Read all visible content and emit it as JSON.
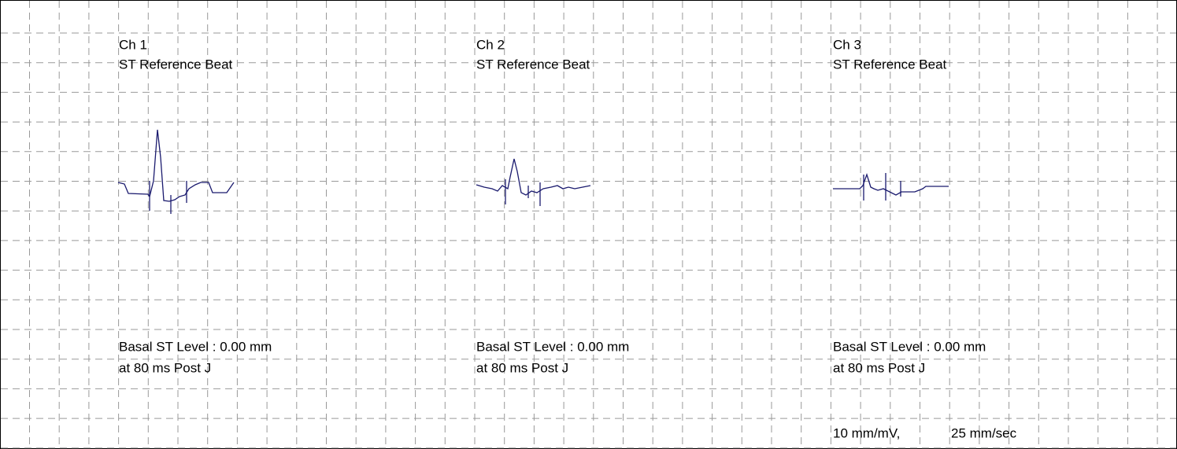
{
  "channels": [
    {
      "label": "Ch 1",
      "subtitle": "ST Reference Beat",
      "basal": "Basal ST Level : 0.00 mm",
      "post": "at 80 ms Post J"
    },
    {
      "label": "Ch 2",
      "subtitle": "ST Reference Beat",
      "basal": "Basal ST Level : 0.00 mm",
      "post": "at 80 ms Post J"
    },
    {
      "label": "Ch 3",
      "subtitle": "ST Reference Beat",
      "basal": "Basal ST Level : 0.00 mm",
      "post": "at 80 ms Post J"
    }
  ],
  "footer": {
    "gain": "10 mm/mV,",
    "speed": "25 mm/sec"
  }
}
